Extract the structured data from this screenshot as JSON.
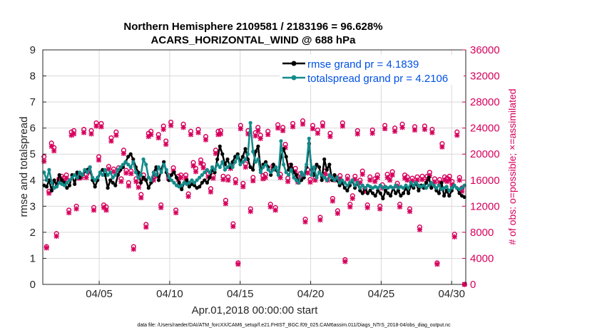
{
  "chart_data": {
    "type": "line",
    "title_line1": "Northern Hemisphere 2109581 / 2183196 = 96.628%",
    "title_line2": "ACARS_HORIZONTAL_WIND @ 688 hPa",
    "ylabel_left": "rmse and totalspread",
    "ylabel_right": "# of obs: o=possible; ×=assimilated",
    "xlabel": "Apr.01,2018 00:00:00 start",
    "footer": "data file: /Users/raeder/DAI/ATM_forcXX/CAM6_setup/f.e21.FHIST_BGC.f09_025.CAM6assim.011/Diags_NTrS_2018-04/obs_diag_output.nc",
    "x_range": [
      1,
      31
    ],
    "ylim_left": [
      0,
      9
    ],
    "ylim_right": [
      0,
      36000
    ],
    "left_ticks": [
      "0",
      "1",
      "2",
      "3",
      "4",
      "5",
      "6",
      "7",
      "8",
      "9"
    ],
    "right_ticks": [
      "0",
      "4000",
      "8000",
      "12000",
      "16000",
      "20000",
      "24000",
      "28000",
      "32000",
      "36000"
    ],
    "x_ticks": [
      {
        "day": 5,
        "label": "04/05"
      },
      {
        "day": 10,
        "label": "04/10"
      },
      {
        "day": 15,
        "label": "04/15"
      },
      {
        "day": 20,
        "label": "04/20"
      },
      {
        "day": 25,
        "label": "04/25"
      },
      {
        "day": 30,
        "label": "04/30"
      }
    ],
    "series": [
      {
        "name": "rmse grand pr = 4.1839",
        "color": "#000000",
        "axis": "left",
        "values": [
          3.8,
          3.75,
          4.0,
          3.6,
          4.0,
          3.8,
          4.2,
          4.0,
          3.9,
          3.7,
          3.8,
          4.2,
          3.85,
          4.3,
          4.1,
          4.2,
          4.35,
          4.4,
          4.5,
          4.0,
          3.75,
          4.0,
          4.3,
          4.4,
          4.2,
          3.7,
          4.0,
          3.9,
          3.8,
          4.2,
          4.4,
          4.5,
          4.7,
          4.9,
          5.0,
          4.8,
          4.5,
          4.3,
          3.9,
          4.1,
          4.0,
          3.7,
          3.9,
          4.3,
          4.5,
          4.0,
          4.4,
          4.7,
          4.3,
          4.0,
          4.2,
          4.3,
          4.1,
          3.9,
          3.65,
          3.9,
          4.0,
          3.75,
          3.85,
          3.8,
          3.7,
          3.75,
          3.9,
          4.0,
          3.9,
          4.1,
          4.4,
          4.3,
          4.8,
          5.3,
          5.0,
          4.6,
          4.8,
          4.5,
          4.7,
          4.9,
          5.0,
          4.7,
          4.9,
          5.2,
          4.8,
          4.5,
          4.4,
          5.1,
          5.3,
          4.4,
          4.6,
          4.7,
          4.5,
          4.2,
          4.6,
          4.4,
          4.2,
          4.9,
          5.2,
          4.9,
          4.4,
          4.6,
          4.3,
          4.2,
          3.9,
          4.0,
          4.1,
          4.5,
          5.4,
          4.4,
          4.2,
          4.6,
          4.5,
          4.0,
          4.8,
          4.4,
          4.6,
          4.0,
          4.2,
          4.0,
          3.8,
          3.9,
          3.7,
          3.6,
          3.8,
          4.0,
          3.7,
          3.9,
          3.6,
          3.5,
          3.7,
          3.5,
          3.6,
          3.5,
          3.4,
          3.6,
          3.5,
          3.3,
          3.6,
          3.5,
          3.4,
          3.7,
          3.5,
          3.6,
          3.4,
          3.5,
          3.7,
          3.5,
          3.8,
          3.7,
          3.9,
          3.6,
          3.8,
          3.7,
          3.9,
          4.1,
          3.7,
          3.8,
          3.6,
          3.5,
          3.9,
          3.4,
          3.6,
          3.4,
          3.6,
          3.8,
          3.7,
          3.5,
          3.4,
          3.35
        ]
      },
      {
        "name": "totalspread grand pr = 4.2106",
        "color": "#138a8a",
        "axis": "left",
        "values": [
          4.3,
          4.0,
          4.4,
          3.9,
          3.7,
          3.75,
          3.9,
          3.85,
          3.8,
          3.9,
          4.0,
          4.1,
          4.2,
          4.1,
          4.3,
          4.2,
          4.4,
          4.3,
          4.5,
          4.1,
          4.0,
          4.1,
          4.3,
          4.2,
          4.4,
          4.2,
          4.3,
          4.1,
          4.2,
          4.4,
          4.5,
          4.6,
          4.7,
          4.6,
          4.5,
          4.7,
          4.3,
          4.1,
          4.2,
          4.8,
          4.6,
          4.1,
          4.0,
          4.3,
          4.2,
          4.5,
          4.3,
          4.6,
          4.4,
          4.1,
          4.0,
          3.9,
          3.8,
          3.75,
          3.8,
          3.9,
          3.85,
          3.9,
          4.0,
          3.9,
          4.0,
          4.1,
          4.2,
          4.3,
          4.4,
          4.3,
          4.5,
          4.4,
          4.6,
          4.5,
          4.7,
          4.4,
          4.5,
          4.6,
          4.5,
          4.7,
          4.9,
          4.6,
          4.7,
          4.8,
          5.0,
          6.2,
          5.1,
          4.7,
          4.8,
          4.3,
          4.5,
          4.6,
          4.4,
          4.3,
          4.4,
          4.5,
          4.2,
          5.5,
          4.6,
          4.3,
          4.2,
          4.4,
          4.1,
          4.0,
          3.9,
          4.3,
          4.2,
          4.6,
          5.6,
          4.2,
          4.5,
          4.1,
          4.3,
          4.2,
          4.1,
          4.0,
          4.2,
          4.1,
          4.0,
          4.1,
          3.9,
          4.0,
          3.9,
          3.8,
          3.9,
          4.0,
          3.8,
          3.9,
          3.7,
          3.8,
          3.7,
          3.8,
          3.75,
          3.7,
          3.75,
          3.7,
          3.8,
          3.7,
          3.75,
          3.7,
          3.75,
          3.7,
          3.8,
          3.7,
          3.75,
          3.7,
          3.8,
          3.7,
          3.9,
          3.8,
          3.9,
          3.8,
          3.75,
          3.8,
          3.7,
          3.8,
          3.9,
          3.8,
          3.7,
          3.8,
          3.65,
          3.7,
          3.75,
          3.6,
          3.7,
          3.8,
          3.7,
          3.65,
          3.7,
          3.8
        ]
      },
      {
        "name": "possible",
        "color": "#d6005c",
        "axis": "right",
        "marker": "o",
        "values": [
          19600,
          5800,
          14300,
          21700,
          21000,
          7800,
          16200,
          16600,
          16300,
          16800,
          11400,
          23400,
          23600,
          12000,
          16700,
          16800,
          23800,
          16900,
          17600,
          23600,
          11800,
          24800,
          19600,
          24700,
          12200,
          11900,
          18100,
          22500,
          17700,
          23400,
          17900,
          16200,
          20600,
          17500,
          15600,
          17400,
          5800,
          16200,
          15300,
          13800,
          16800,
          9200,
          23200,
          23500,
          16400,
          17100,
          23000,
          12200,
          24300,
          22000,
          16700,
          24900,
          17900,
          11400,
          16600,
          16800,
          24600,
          16800,
          13900,
          23500,
          18700,
          17800,
          23800,
          19100,
          18400,
          22700,
          17000,
          14700,
          16700,
          20600,
          23500,
          23600,
          16600,
          12900,
          16500,
          18200,
          9300,
          16100,
          3300,
          24400,
          15500,
          18500,
          23600,
          11600,
          16400,
          23300,
          24100,
          22900,
          16700,
          16900,
          23500,
          12300,
          18200,
          11800,
          24500,
          16900,
          24100,
          21500,
          16300,
          18300,
          24700,
          17800,
          16200,
          17000,
          25100,
          10000,
          17600,
          16100,
          24400,
          16500,
          23700,
          10300,
          24800,
          17400,
          16500,
          23200,
          13200,
          16500,
          11300,
          16700,
          24800,
          3800,
          16600,
          12300,
          13600,
          16600,
          23600,
          16000,
          17400,
          14700,
          12200,
          16500,
          23700,
          16200,
          16800,
          12000,
          15300,
          24400,
          16900,
          16500,
          17300,
          24000,
          15500,
          12300,
          24600,
          16800,
          16500,
          11600,
          16300,
          24200,
          16500,
          8800,
          16600,
          24300,
          16600,
          17200,
          23800,
          16200,
          3300,
          16100,
          21600,
          16500,
          16300,
          16600,
          15800,
          7700,
          23400,
          16400,
          14800,
          0
        ]
      },
      {
        "name": "assimilated",
        "color": "#d6005c",
        "axis": "right",
        "marker": "x",
        "values": [
          18900,
          5600,
          14000,
          21200,
          20500,
          7400,
          15800,
          16200,
          15900,
          16300,
          11000,
          22900,
          23100,
          11600,
          16300,
          16400,
          23300,
          16400,
          17200,
          23100,
          11400,
          24300,
          19100,
          24200,
          11800,
          11400,
          17700,
          22000,
          17300,
          22900,
          17500,
          15800,
          20100,
          17100,
          15100,
          17000,
          5400,
          15800,
          14900,
          13300,
          16300,
          8800,
          22700,
          23000,
          16000,
          16600,
          22500,
          11800,
          23800,
          21500,
          16300,
          24400,
          17400,
          11000,
          16100,
          16400,
          24100,
          16300,
          13500,
          23000,
          18200,
          17300,
          23300,
          18600,
          17900,
          22200,
          16500,
          14200,
          16300,
          20100,
          23000,
          23100,
          16100,
          12400,
          16000,
          17800,
          8900,
          15600,
          3100,
          23900,
          15000,
          18000,
          23100,
          11200,
          15900,
          22800,
          23600,
          22400,
          16200,
          16400,
          23000,
          11900,
          17700,
          11400,
          24000,
          16400,
          23600,
          21000,
          15800,
          17800,
          24200,
          17300,
          15700,
          16500,
          24600,
          9600,
          17100,
          15700,
          23900,
          16000,
          23200,
          9900,
          24300,
          17000,
          16000,
          22700,
          12800,
          16000,
          10900,
          16200,
          24300,
          3500,
          16200,
          11900,
          13200,
          16100,
          23100,
          15600,
          16900,
          14300,
          11800,
          16000,
          23200,
          15800,
          16400,
          11600,
          14800,
          23900,
          16400,
          16000,
          16800,
          23500,
          15100,
          11900,
          24100,
          16300,
          16000,
          11200,
          15900,
          23700,
          16000,
          8400,
          16100,
          23800,
          16100,
          16700,
          23300,
          15700,
          3100,
          15600,
          21100,
          16000,
          15800,
          16100,
          15300,
          7300,
          22900,
          16000,
          14300,
          0
        ]
      }
    ],
    "legend_entries": [
      "rmse grand pr = 4.1839",
      "totalspread grand pr = 4.2106"
    ],
    "legend_position": "top-right"
  }
}
